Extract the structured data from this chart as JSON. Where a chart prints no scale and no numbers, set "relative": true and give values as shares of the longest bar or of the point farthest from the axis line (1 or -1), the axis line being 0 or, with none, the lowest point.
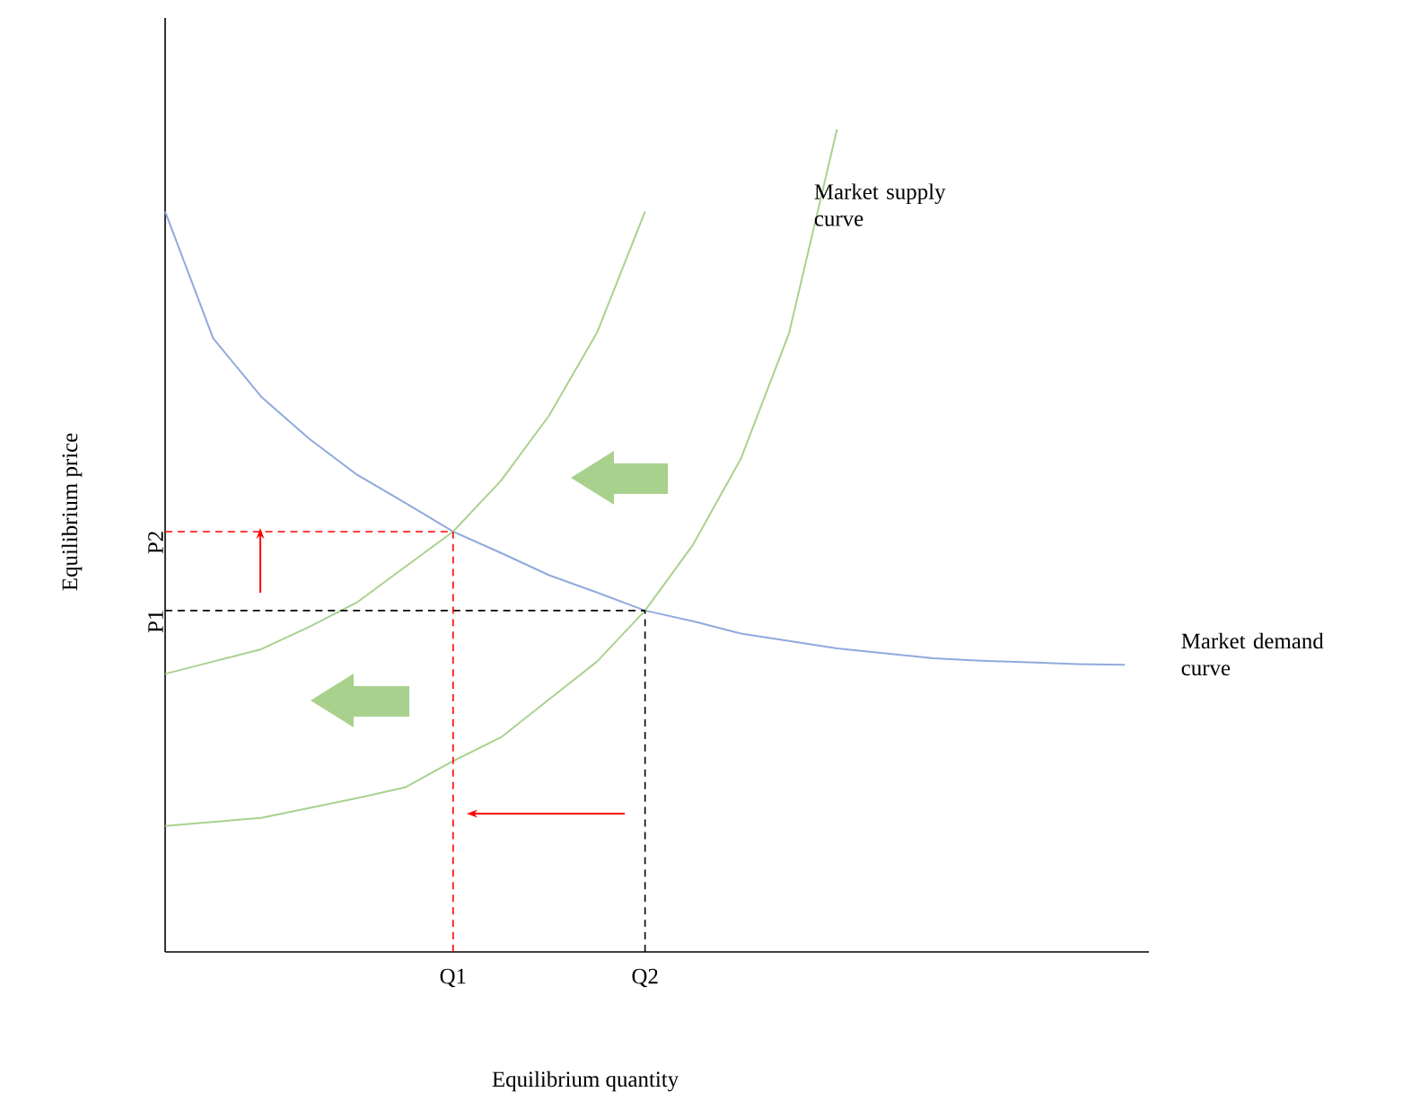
{
  "chart_data": {
    "type": "line",
    "relative": true,
    "xlabel": "Equilibrium quantity",
    "ylabel": "Equilibrium price",
    "categories": [
      null,
      null,
      null,
      null,
      null,
      null,
      "Q1",
      null,
      null,
      null,
      "Q2",
      null,
      null,
      null,
      null,
      null,
      null,
      null,
      null,
      null,
      null
    ],
    "series": [
      {
        "name": "Market demand curve",
        "color": "#8faadc",
        "values": [
          0.9,
          0.746,
          0.675,
          0.624,
          0.58,
          0.546,
          0.511,
          0.485,
          0.458,
          0.437,
          0.415,
          0.402,
          0.387,
          0.378,
          0.369,
          0.363,
          0.357,
          0.354,
          0.352,
          0.35,
          0.349
        ]
      },
      {
        "color": "#a9d18e",
        "values": [
          0.338,
          0.353,
          0.368,
          0.395,
          0.425,
          0.468,
          0.511,
          0.573,
          0.652,
          0.753,
          0.9,
          null,
          null,
          null,
          null,
          null,
          null,
          null,
          null,
          null,
          null
        ]
      },
      {
        "name": "Market supply curve",
        "color": "#a9d18e",
        "values": [
          0.153,
          0.158,
          0.163,
          0.175,
          0.187,
          0.2,
          0.232,
          0.261,
          0.307,
          0.353,
          0.415,
          0.495,
          0.6,
          0.752,
          1.0,
          null,
          null,
          null,
          null,
          null,
          null
        ]
      }
    ],
    "ref_lines": [
      {
        "axis": "y",
        "value": 0.511,
        "label": "P2",
        "color": "#ff0000",
        "line_style": "dashed"
      },
      {
        "axis": "y",
        "value": 0.415,
        "label": "P1",
        "color": "#000000",
        "line_style": "dashed"
      },
      {
        "axis": "x",
        "value": "Q1",
        "color": "#ff0000",
        "line_style": "dashed"
      },
      {
        "axis": "x",
        "value": "Q2",
        "color": "#000000",
        "line_style": "dashed"
      }
    ]
  }
}
